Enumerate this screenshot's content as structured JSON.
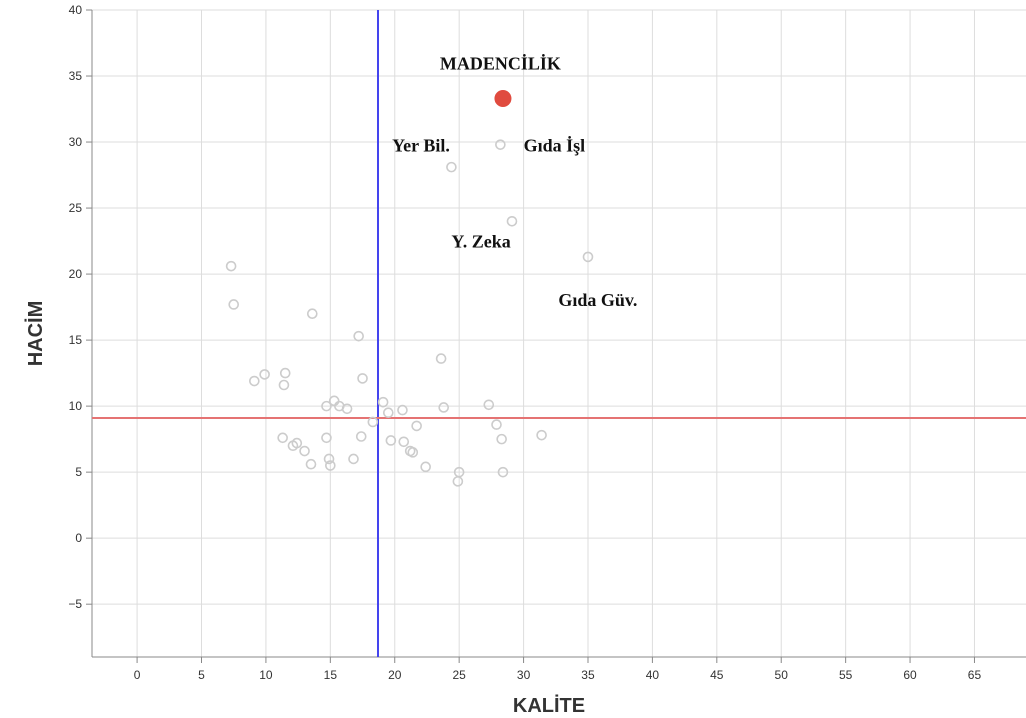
{
  "chart_data": {
    "type": "scatter",
    "title": "",
    "xlabel": "KALİTE",
    "ylabel": "HACİM",
    "xlim": [
      -3.5,
      69
    ],
    "ylim": [
      -9,
      40
    ],
    "x_ticks": [
      0,
      5,
      10,
      15,
      20,
      25,
      30,
      35,
      40,
      45,
      50,
      55,
      60,
      65
    ],
    "y_ticks": [
      40,
      35,
      30,
      25,
      20,
      15,
      10,
      5,
      0,
      -5
    ],
    "x_tick_labels": [
      "0",
      "5",
      "10",
      "15",
      "20",
      "25",
      "30",
      "35",
      "40",
      "45",
      "50",
      "55",
      "60",
      "65"
    ],
    "y_tick_labels": [
      "40",
      "35",
      "30",
      "25",
      "20",
      "15",
      "10",
      "5",
      "0",
      "−5"
    ],
    "grid": true,
    "reference_lines": {
      "vertical_x": 18.7,
      "vertical_color": "#4444ee",
      "horizontal_y": 9.1,
      "horizontal_color": "#e57373"
    },
    "highlight_point": {
      "label": "MADENCİLİK",
      "x": 28.4,
      "y": 33.3,
      "color": "#e04b3f"
    },
    "points": [
      {
        "x": 28.2,
        "y": 29.8
      },
      {
        "x": 24.4,
        "y": 28.1
      },
      {
        "x": 29.1,
        "y": 24.0
      },
      {
        "x": 35.0,
        "y": 21.3
      },
      {
        "x": 7.3,
        "y": 20.6
      },
      {
        "x": 7.5,
        "y": 17.7
      },
      {
        "x": 13.6,
        "y": 17.0
      },
      {
        "x": 17.2,
        "y": 15.3
      },
      {
        "x": 23.6,
        "y": 13.6
      },
      {
        "x": 9.9,
        "y": 12.4
      },
      {
        "x": 11.5,
        "y": 12.5
      },
      {
        "x": 9.1,
        "y": 11.9
      },
      {
        "x": 11.4,
        "y": 11.6
      },
      {
        "x": 17.5,
        "y": 12.1
      },
      {
        "x": 14.7,
        "y": 10.0
      },
      {
        "x": 15.3,
        "y": 10.4
      },
      {
        "x": 15.7,
        "y": 10.0
      },
      {
        "x": 16.3,
        "y": 9.8
      },
      {
        "x": 19.1,
        "y": 10.3
      },
      {
        "x": 20.6,
        "y": 9.7
      },
      {
        "x": 23.8,
        "y": 9.9
      },
      {
        "x": 27.3,
        "y": 10.1
      },
      {
        "x": 18.3,
        "y": 8.8
      },
      {
        "x": 19.5,
        "y": 9.5
      },
      {
        "x": 21.7,
        "y": 8.5
      },
      {
        "x": 27.9,
        "y": 8.6
      },
      {
        "x": 31.4,
        "y": 7.8
      },
      {
        "x": 28.3,
        "y": 7.5
      },
      {
        "x": 11.3,
        "y": 7.6
      },
      {
        "x": 14.7,
        "y": 7.6
      },
      {
        "x": 17.4,
        "y": 7.7
      },
      {
        "x": 19.7,
        "y": 7.4
      },
      {
        "x": 20.7,
        "y": 7.3
      },
      {
        "x": 12.1,
        "y": 7.0
      },
      {
        "x": 12.4,
        "y": 7.2
      },
      {
        "x": 13.0,
        "y": 6.6
      },
      {
        "x": 21.2,
        "y": 6.6
      },
      {
        "x": 21.4,
        "y": 6.5
      },
      {
        "x": 14.9,
        "y": 6.0
      },
      {
        "x": 16.8,
        "y": 6.0
      },
      {
        "x": 13.5,
        "y": 5.6
      },
      {
        "x": 15.0,
        "y": 5.5
      },
      {
        "x": 22.4,
        "y": 5.4
      },
      {
        "x": 25.0,
        "y": 5.0
      },
      {
        "x": 28.4,
        "y": 5.0
      },
      {
        "x": 24.9,
        "y": 4.3
      }
    ],
    "point_style": {
      "stroke": "#cccccc",
      "fill": "none"
    },
    "annotations": [
      {
        "text": "MADENCİLİK",
        "x": 23.5,
        "y": 35.5
      },
      {
        "text": "Yer Bil.",
        "x": 19.8,
        "y": 29.3
      },
      {
        "text": "Gıda İşl",
        "x": 30.0,
        "y": 29.3
      },
      {
        "text": "Y. Zeka",
        "x": 24.4,
        "y": 22.0
      },
      {
        "text": "Gıda Güv.",
        "x": 32.7,
        "y": 17.6
      }
    ]
  }
}
